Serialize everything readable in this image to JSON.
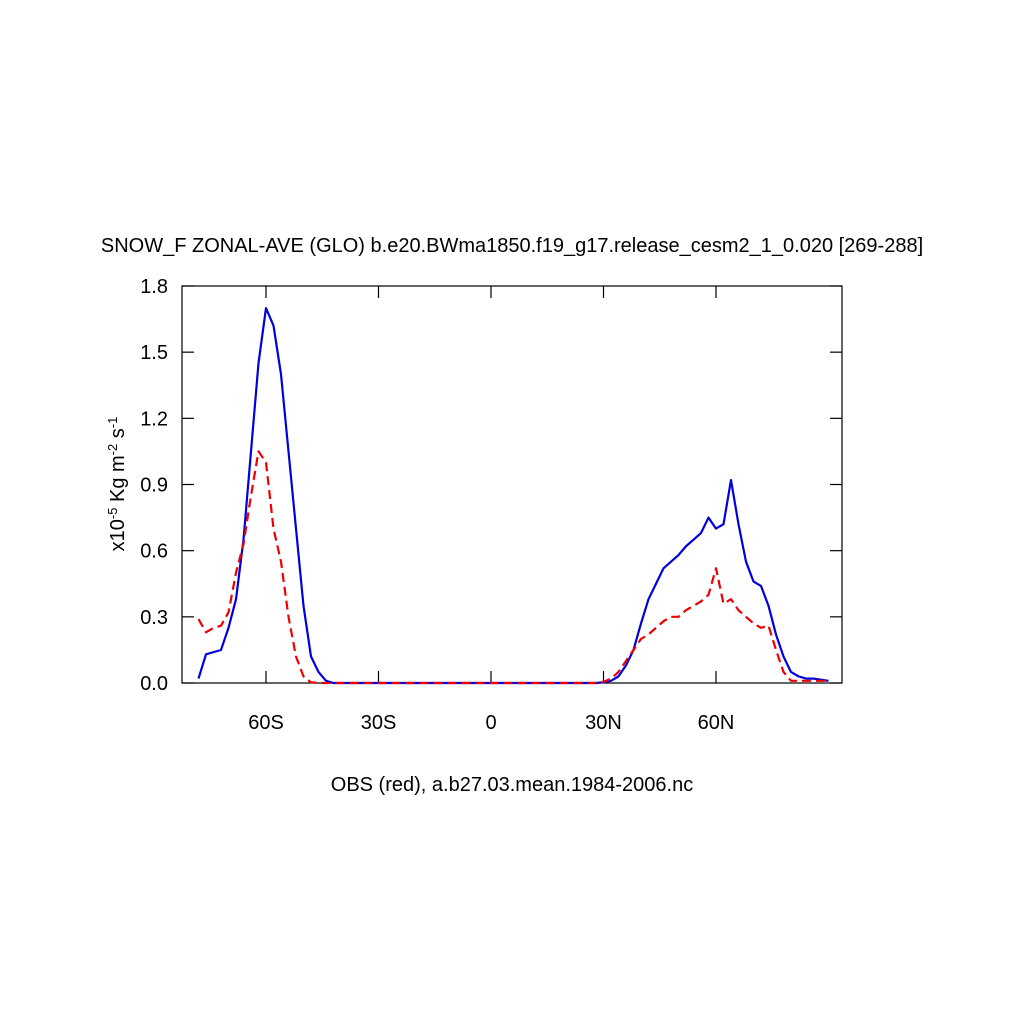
{
  "chart_data": {
    "type": "line",
    "title": "SNOW_F ZONAL-AVE (GLO) b.e20.BWma1850.f19_g17.release_cesm2_1_0.020 [269-288]",
    "ylabel_parts": [
      "x10",
      "-5",
      " Kg m",
      "-2",
      " s",
      "-1"
    ],
    "xlabel": "OBS (red), a.b27.03.mean.1984-2006.nc",
    "x": [
      -78,
      -76,
      -74,
      -72,
      -70,
      -68,
      -66,
      -64,
      -62,
      -60,
      -58,
      -56,
      -54,
      -52,
      -50,
      -48,
      -46,
      -44,
      -42,
      -40,
      -38,
      -36,
      -34,
      -32,
      -30,
      -28,
      -26,
      -24,
      -22,
      -20,
      -18,
      -16,
      -14,
      -12,
      -10,
      -8,
      -6,
      -4,
      -2,
      0,
      2,
      4,
      6,
      8,
      10,
      12,
      14,
      16,
      18,
      20,
      22,
      24,
      26,
      28,
      30,
      32,
      34,
      36,
      38,
      40,
      42,
      44,
      46,
      48,
      50,
      52,
      54,
      56,
      58,
      60,
      62,
      64,
      66,
      68,
      70,
      72,
      74,
      76,
      78,
      80,
      82,
      84,
      86,
      88,
      90
    ],
    "series": [
      {
        "color": "#0000dd",
        "dash": false,
        "values": [
          0.02,
          0.13,
          0.14,
          0.15,
          0.25,
          0.38,
          0.65,
          1.05,
          1.45,
          1.7,
          1.62,
          1.4,
          1.05,
          0.7,
          0.35,
          0.12,
          0.05,
          0.01,
          0,
          0,
          0,
          0,
          0,
          0,
          0,
          0,
          0,
          0,
          0,
          0,
          0,
          0,
          0,
          0,
          0,
          0,
          0,
          0,
          0,
          0,
          0,
          0,
          0,
          0,
          0,
          0,
          0,
          0,
          0,
          0,
          0,
          0,
          0,
          0,
          0.003,
          0.01,
          0.03,
          0.08,
          0.15,
          0.27,
          0.38,
          0.45,
          0.52,
          0.55,
          0.58,
          0.62,
          0.65,
          0.68,
          0.75,
          0.7,
          0.72,
          0.92,
          0.72,
          0.55,
          0.46,
          0.44,
          0.35,
          0.22,
          0.12,
          0.05,
          0.03,
          0.02,
          0.02,
          0.015,
          0.01
        ]
      },
      {
        "color": "#ee0000",
        "dash": true,
        "values": [
          0.29,
          0.23,
          0.25,
          0.26,
          0.32,
          0.5,
          0.63,
          0.85,
          1.05,
          1,
          0.7,
          0.55,
          0.3,
          0.12,
          0.03,
          0.003,
          0,
          0,
          0,
          0,
          0,
          0,
          0,
          0,
          0,
          0,
          0,
          0,
          0,
          0,
          0,
          0,
          0,
          0,
          0,
          0,
          0,
          0,
          0,
          0,
          0,
          0,
          0,
          0,
          0,
          0,
          0,
          0,
          0,
          0,
          0,
          0,
          0,
          0,
          0.005,
          0.02,
          0.05,
          0.1,
          0.15,
          0.2,
          0.22,
          0.25,
          0.28,
          0.3,
          0.3,
          0.33,
          0.35,
          0.37,
          0.4,
          0.52,
          0.36,
          0.38,
          0.33,
          0.3,
          0.27,
          0.25,
          0.26,
          0.15,
          0.05,
          0.01,
          0.01,
          0.01,
          0.01,
          0.01,
          0.01
        ]
      }
    ],
    "xlim": [
      -82.4,
      93.6
    ],
    "xticks": [
      {
        "value": -60,
        "label": "60S"
      },
      {
        "value": -30,
        "label": "30S"
      },
      0,
      {
        "value": 30,
        "label": "30N"
      },
      {
        "value": 60,
        "label": "60N"
      }
    ],
    "ylim": [
      0,
      1.8
    ],
    "yticks": [
      {
        "value": 0,
        "label": "0.0"
      },
      0.3,
      0.6,
      0.9,
      1.2,
      1.5,
      1.8
    ]
  }
}
